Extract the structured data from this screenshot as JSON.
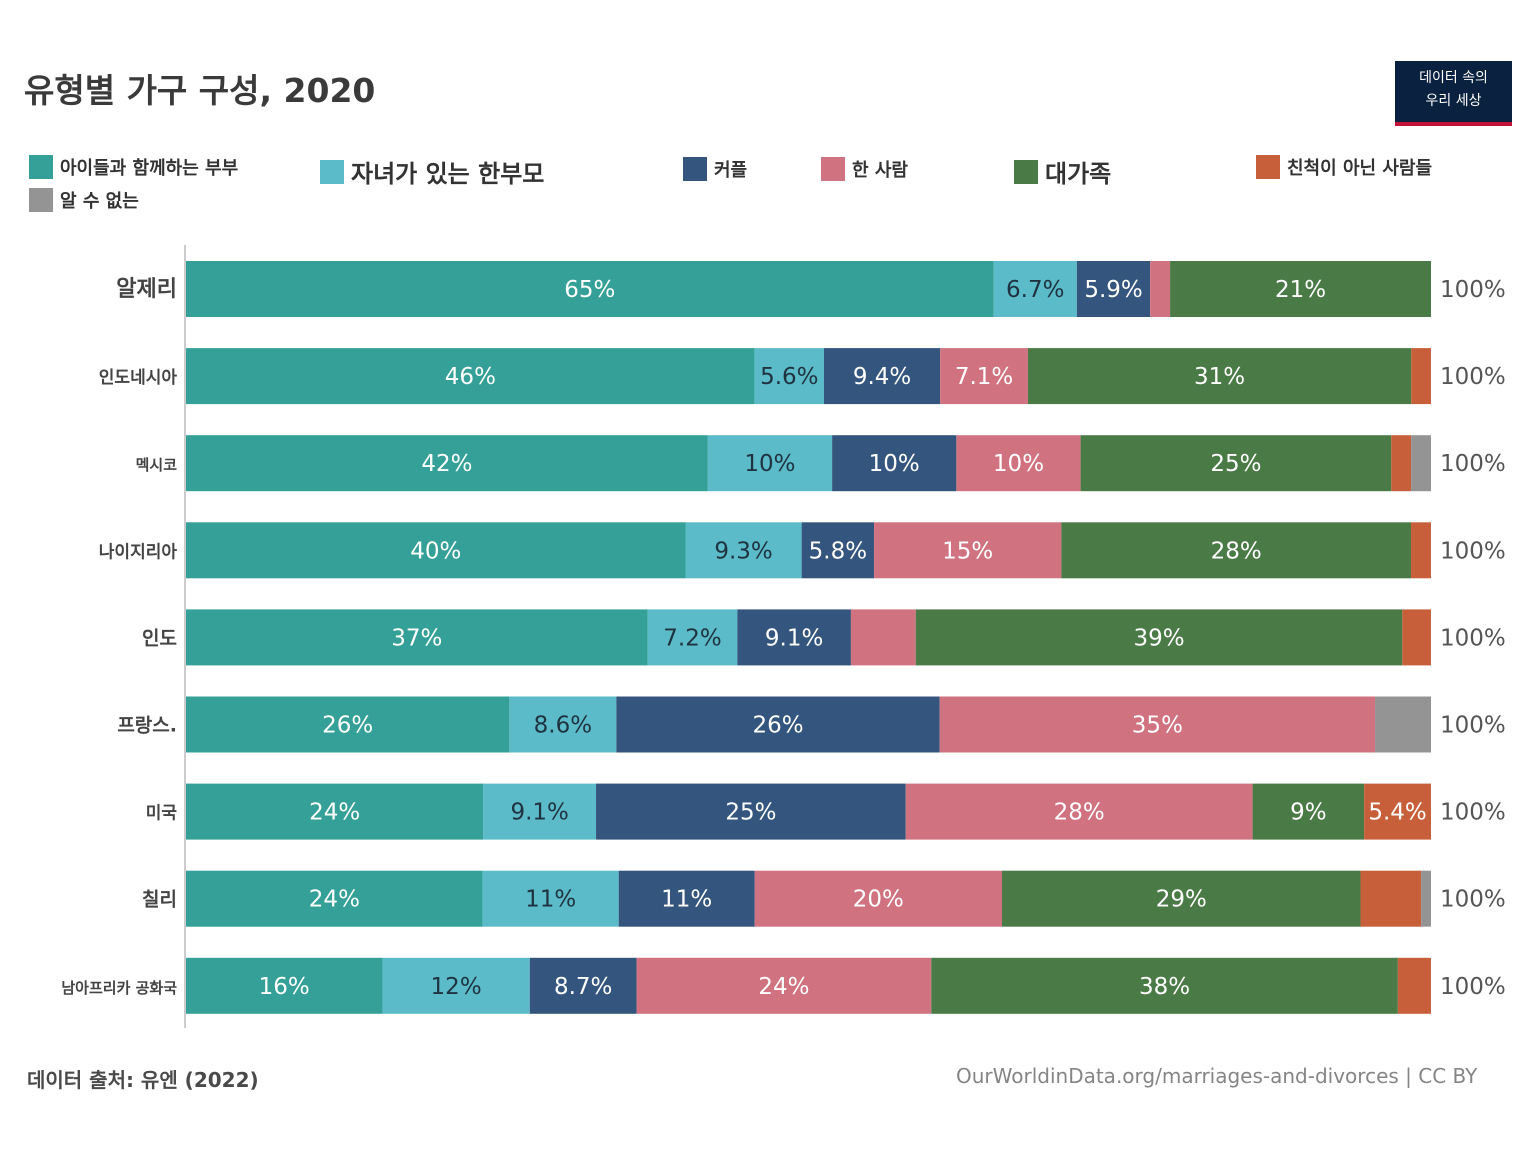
{
  "title": "유형별 가구 구성, 2020",
  "logo": {
    "line1": "데이터 속의",
    "line2": "우리 세상"
  },
  "legend": [
    {
      "name": "아이들과 함께하는 부부",
      "color": "#34a097"
    },
    {
      "name": "자녀가 있는 한부모",
      "color": "#5cbbc9"
    },
    {
      "name": "커플",
      "color": "#34557d"
    },
    {
      "name": "한 사람",
      "color": "#d0727f"
    },
    {
      "name": "대가족",
      "color": "#4a7a46"
    },
    {
      "name": "친척이 아닌 사람들",
      "color": "#c7603a"
    },
    {
      "name": "알 수 없는",
      "color": "#949494"
    }
  ],
  "chart_data": {
    "type": "bar",
    "orientation": "horizontal",
    "stacked": true,
    "categories": [
      "알제리",
      "인도네시아",
      "멕시코",
      "나이지리아",
      "인도",
      "프랑스.",
      "미국",
      "칠리",
      "남아프리카 공화국"
    ],
    "totals": [
      "100%",
      "100%",
      "100%",
      "100%",
      "100%",
      "100%",
      "100%",
      "100%",
      "100%"
    ],
    "xlim": [
      0,
      100
    ],
    "series": [
      {
        "name": "아이들과 함께하는 부부",
        "color": "#34a097",
        "values": [
          65,
          46,
          42,
          40,
          37,
          26,
          24,
          24,
          16
        ],
        "labels": [
          "65%",
          "46%",
          "42%",
          "40%",
          "37%",
          "26%",
          "24%",
          "24%",
          "16%"
        ]
      },
      {
        "name": "자녀가 있는 한부모",
        "color": "#5cbbc9",
        "values": [
          6.7,
          5.6,
          10,
          9.3,
          7.2,
          8.6,
          9.1,
          11,
          12
        ],
        "labels": [
          "6.7%",
          "5.6%",
          "10%",
          "9.3%",
          "7.2%",
          "8.6%",
          "9.1%",
          "11%",
          "12%"
        ]
      },
      {
        "name": "커플",
        "color": "#34557d",
        "values": [
          5.9,
          9.4,
          10,
          5.8,
          9.1,
          26,
          25,
          11,
          8.7
        ],
        "labels": [
          "5.9%",
          "9.4%",
          "10%",
          "5.8%",
          "9.1%",
          "26%",
          "25%",
          "11%",
          "8.7%"
        ]
      },
      {
        "name": "한 사람",
        "color": "#d0727f",
        "values": [
          1.6,
          7.1,
          10,
          15,
          5.2,
          35,
          28,
          20,
          24
        ],
        "labels": [
          "",
          "7.1%",
          "10%",
          "15%",
          "",
          "35%",
          "28%",
          "20%",
          "24%"
        ]
      },
      {
        "name": "대가족",
        "color": "#4a7a46",
        "values": [
          21,
          31,
          25,
          28,
          39,
          0,
          9,
          29,
          38
        ],
        "labels": [
          "21%",
          "31%",
          "25%",
          "28%",
          "39%",
          "",
          "9%",
          "29%",
          "38%"
        ]
      },
      {
        "name": "친척이 아닌 사람들",
        "color": "#c7603a",
        "values": [
          0,
          1.6,
          1.6,
          1.6,
          2.3,
          0,
          5.4,
          4.9,
          2.7
        ],
        "labels": [
          "",
          "",
          "",
          "",
          "",
          "",
          "5.4%",
          "",
          ""
        ]
      },
      {
        "name": "알 수 없는",
        "color": "#949494",
        "values": [
          0,
          0,
          1.6,
          0,
          0,
          4.5,
          0,
          0.8,
          0
        ],
        "labels": [
          "",
          "",
          "",
          "",
          "",
          "",
          "",
          "",
          ""
        ]
      }
    ]
  },
  "footer": {
    "source": "데이터 출처: 유엔 (2022)",
    "url": "OurWorldinData.org/marriages-and-divorces  | CC BY"
  }
}
